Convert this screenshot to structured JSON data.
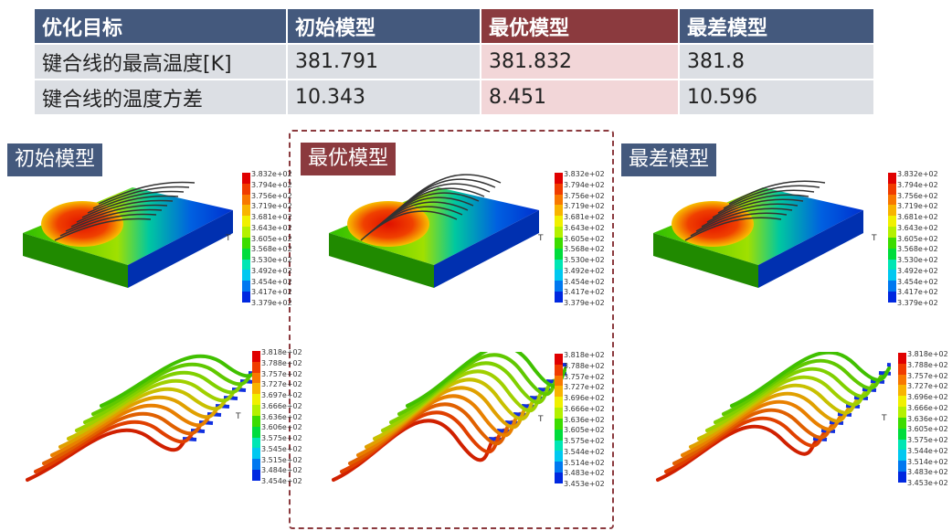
{
  "table": {
    "headers": [
      "优化目标",
      "初始模型",
      "最优模型",
      "最差模型"
    ],
    "rows": [
      [
        "键合线的最高温度[K]",
        "381.791",
        "381.832",
        "381.8"
      ],
      [
        "键合线的温度方差",
        "10.343",
        "8.451",
        "10.596"
      ]
    ]
  },
  "panels": [
    {
      "label": "初始模型"
    },
    {
      "label": "最优模型"
    },
    {
      "label": "最差模型"
    }
  ],
  "colorbar_title": "T",
  "colorbars": {
    "top": [
      "3.832e+02",
      "3.794e+02",
      "3.756e+02",
      "3.719e+02",
      "3.681e+02",
      "3.643e+02",
      "3.605e+02",
      "3.568e+02",
      "3.530e+02",
      "3.492e+02",
      "3.454e+02",
      "3.417e+02",
      "3.379e+02"
    ],
    "bottom_initial": [
      "3.818e+02",
      "3.788e+02",
      "3.757e+02",
      "3.727e+02",
      "3.697e+02",
      "3.666e+02",
      "3.636e+02",
      "3.606e+02",
      "3.575e+02",
      "3.545e+02",
      "3.515e+02",
      "3.484e+02",
      "3.454e+02"
    ],
    "bottom_other": [
      "3.818e+02",
      "3.788e+02",
      "3.757e+02",
      "3.727e+02",
      "3.696e+02",
      "3.666e+02",
      "3.636e+02",
      "3.605e+02",
      "3.575e+02",
      "3.544e+02",
      "3.514e+02",
      "3.483e+02",
      "3.453e+02"
    ]
  },
  "colors": {
    "header": "#44597d",
    "best": "#8b3a3e",
    "row": "#dcdfe4",
    "best_row": "#f2d6d8",
    "scale": [
      "#e00000",
      "#f03c00",
      "#f87800",
      "#f8b400",
      "#f0f000",
      "#b4f000",
      "#3cdc00",
      "#00dc3c",
      "#00e6b4",
      "#00c8f0",
      "#0078f0",
      "#0028e0",
      "#0000c8"
    ]
  }
}
